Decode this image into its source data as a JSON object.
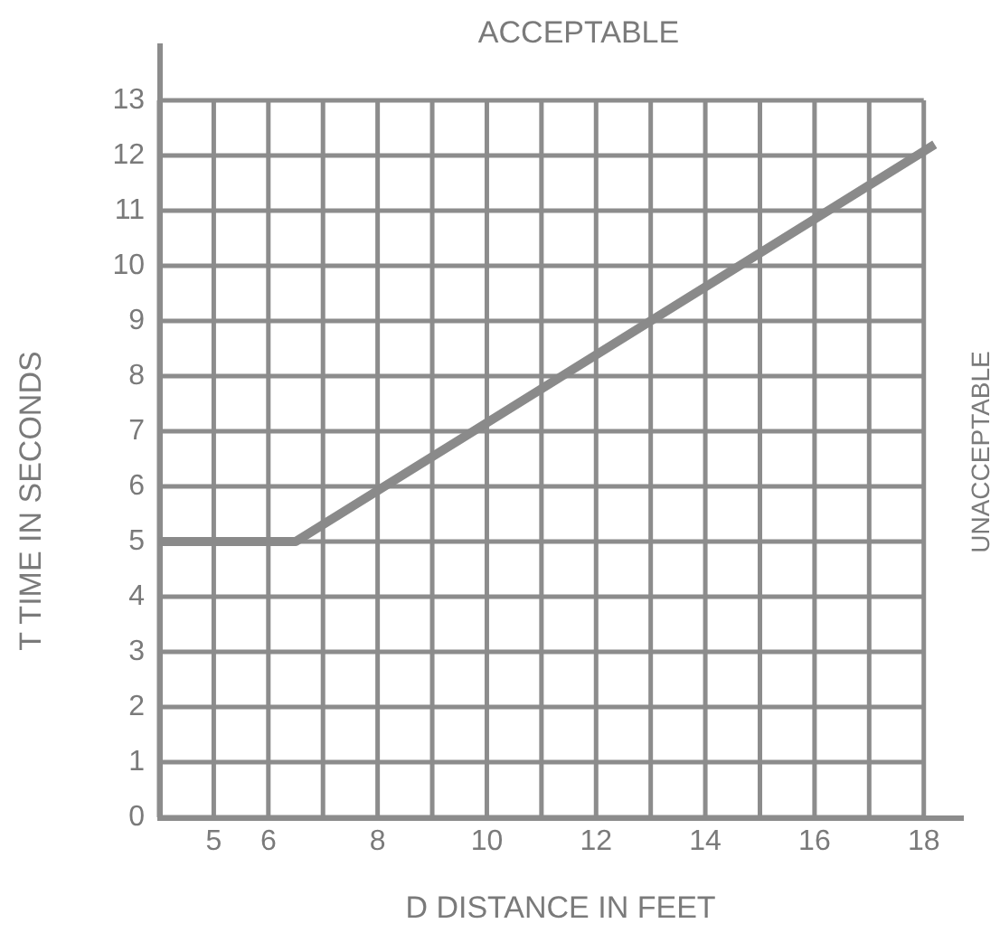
{
  "chart_data": {
    "type": "line",
    "xlabel": "D DISTANCE IN FEET",
    "ylabel": "T TIME IN SECONDS",
    "annotations": [
      "ACCEPTABLE",
      "UNACCEPTABLE"
    ],
    "x": [
      4,
      6.5,
      18.2
    ],
    "values": [
      5,
      5,
      12.2
    ],
    "color": "#8a8a8a",
    "xlim": [
      4,
      18.7
    ],
    "ylim": [
      0,
      14
    ],
    "xticks": [
      {
        "value": 4,
        "label": null
      },
      5,
      6,
      {
        "value": 7,
        "label": null
      },
      8,
      {
        "value": 9,
        "label": null
      },
      10,
      {
        "value": 11,
        "label": null
      },
      12,
      {
        "value": 13,
        "label": null
      },
      14,
      {
        "value": 15,
        "label": null
      },
      16,
      {
        "value": 17,
        "label": null
      },
      18
    ],
    "yticks": [
      0,
      1,
      2,
      3,
      4,
      5,
      6,
      7,
      8,
      9,
      10,
      11,
      12,
      13
    ],
    "grid": true,
    "marker": "none",
    "line_style": "solid"
  }
}
